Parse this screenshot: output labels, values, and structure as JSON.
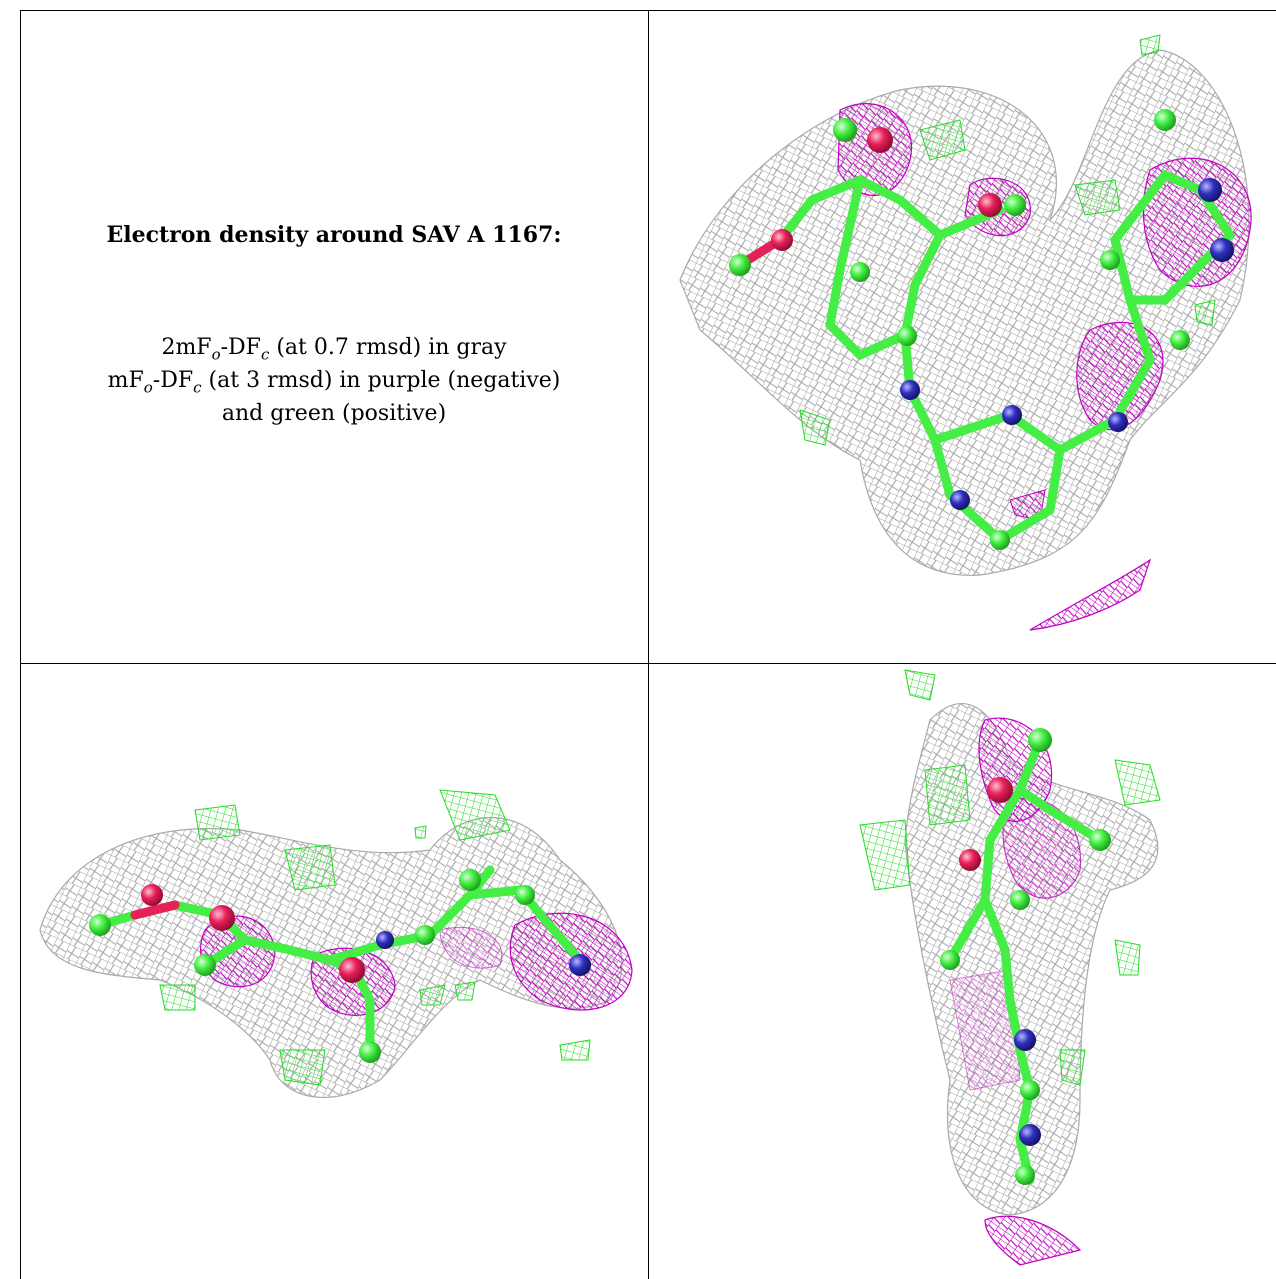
{
  "caption": {
    "title": "Electron density around SAV A 1167:",
    "line1": {
      "prefix": "2mF",
      "s1": "o",
      "mid": "-DF",
      "s2": "c",
      "suffix": " (at 0.7 rmsd) in gray"
    },
    "line2": {
      "prefix": "mF",
      "s1": "o",
      "mid": "-DF",
      "s2": "c",
      "suffix": " (at 3 rmsd) in purple (negative)"
    },
    "line3": "and green (positive)"
  },
  "colors": {
    "mesh_gray": "#9a9a9a",
    "mesh_purple": "#c000c0",
    "mesh_green": "#22dd22",
    "carbon": "#44ee44",
    "oxygen": "#e8205a",
    "nitrogen": "#3030c0"
  },
  "panels": [
    "view-1",
    "view-2",
    "view-3"
  ]
}
